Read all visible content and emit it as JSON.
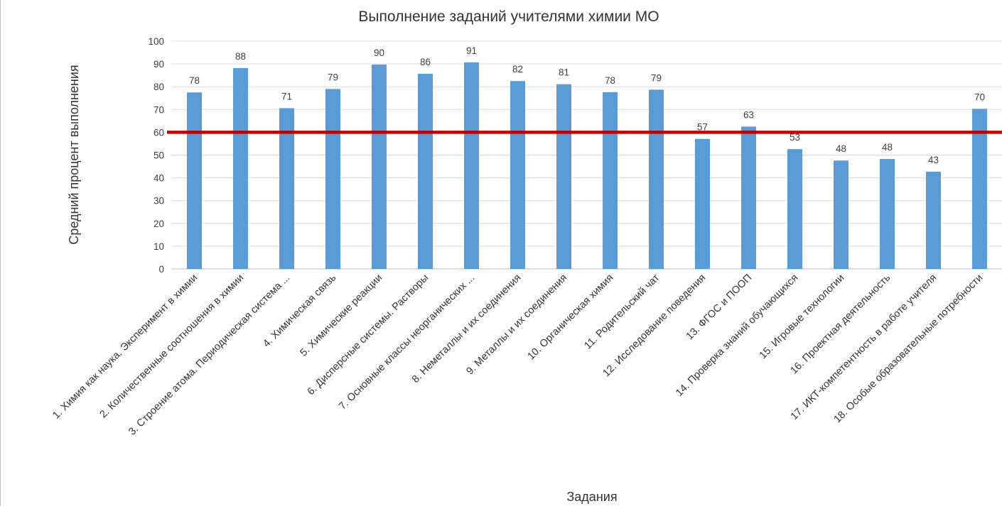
{
  "chart_data": {
    "type": "bar",
    "title": "Выполнение заданий учителями химии МО",
    "xlabel": "Задания",
    "ylabel": "Средний процент выполнения",
    "ylim": [
      0,
      100
    ],
    "ytick_step": 10,
    "yticks": [
      "0",
      "10",
      "20",
      "30",
      "40",
      "50",
      "60",
      "70",
      "80",
      "90",
      "100"
    ],
    "grid": true,
    "legend": "none",
    "categories": [
      "1. Химия как наука. Эксперимент в химии",
      "2. Количественные соотношения в химии",
      "3. Строение атома. Периодическая система ...",
      "4. Химическая связь",
      "5. Химические реакции",
      "6. Дисперсные системы. Растворы",
      "7. Основные классы неорганических ...",
      "8. Неметаллы и их соединения",
      "9. Металлы и их соединения",
      "10. Органическая химия",
      "11. Родительский чат",
      "12. Исследование поведения",
      "13. ФГОС и ПООП",
      "14. Проверка знаний обучающихся",
      "15. Игровые технологии",
      "16. Проектная деятельность",
      "17. ИКТ-компетентность в работе учителя",
      "18. Особые образовательные потребности"
    ],
    "values": [
      77.5,
      88.2,
      70.6,
      79.0,
      89.7,
      85.7,
      90.7,
      82.5,
      81.1,
      77.6,
      78.7,
      57.1,
      62.5,
      52.6,
      47.6,
      48.3,
      42.7,
      70.3
    ],
    "data_labels": [
      "78",
      "88",
      "71",
      "79",
      "90",
      "86",
      "91",
      "82",
      "81",
      "78",
      "79",
      "57",
      "63",
      "53",
      "48",
      "48",
      "43",
      "70"
    ],
    "reference_line": {
      "value": 60
    },
    "colors": {
      "bar": "#5b9bd5",
      "reference_line": "#c00000",
      "grid": "#d9d9d9",
      "axis": "#bfbfbf"
    }
  }
}
